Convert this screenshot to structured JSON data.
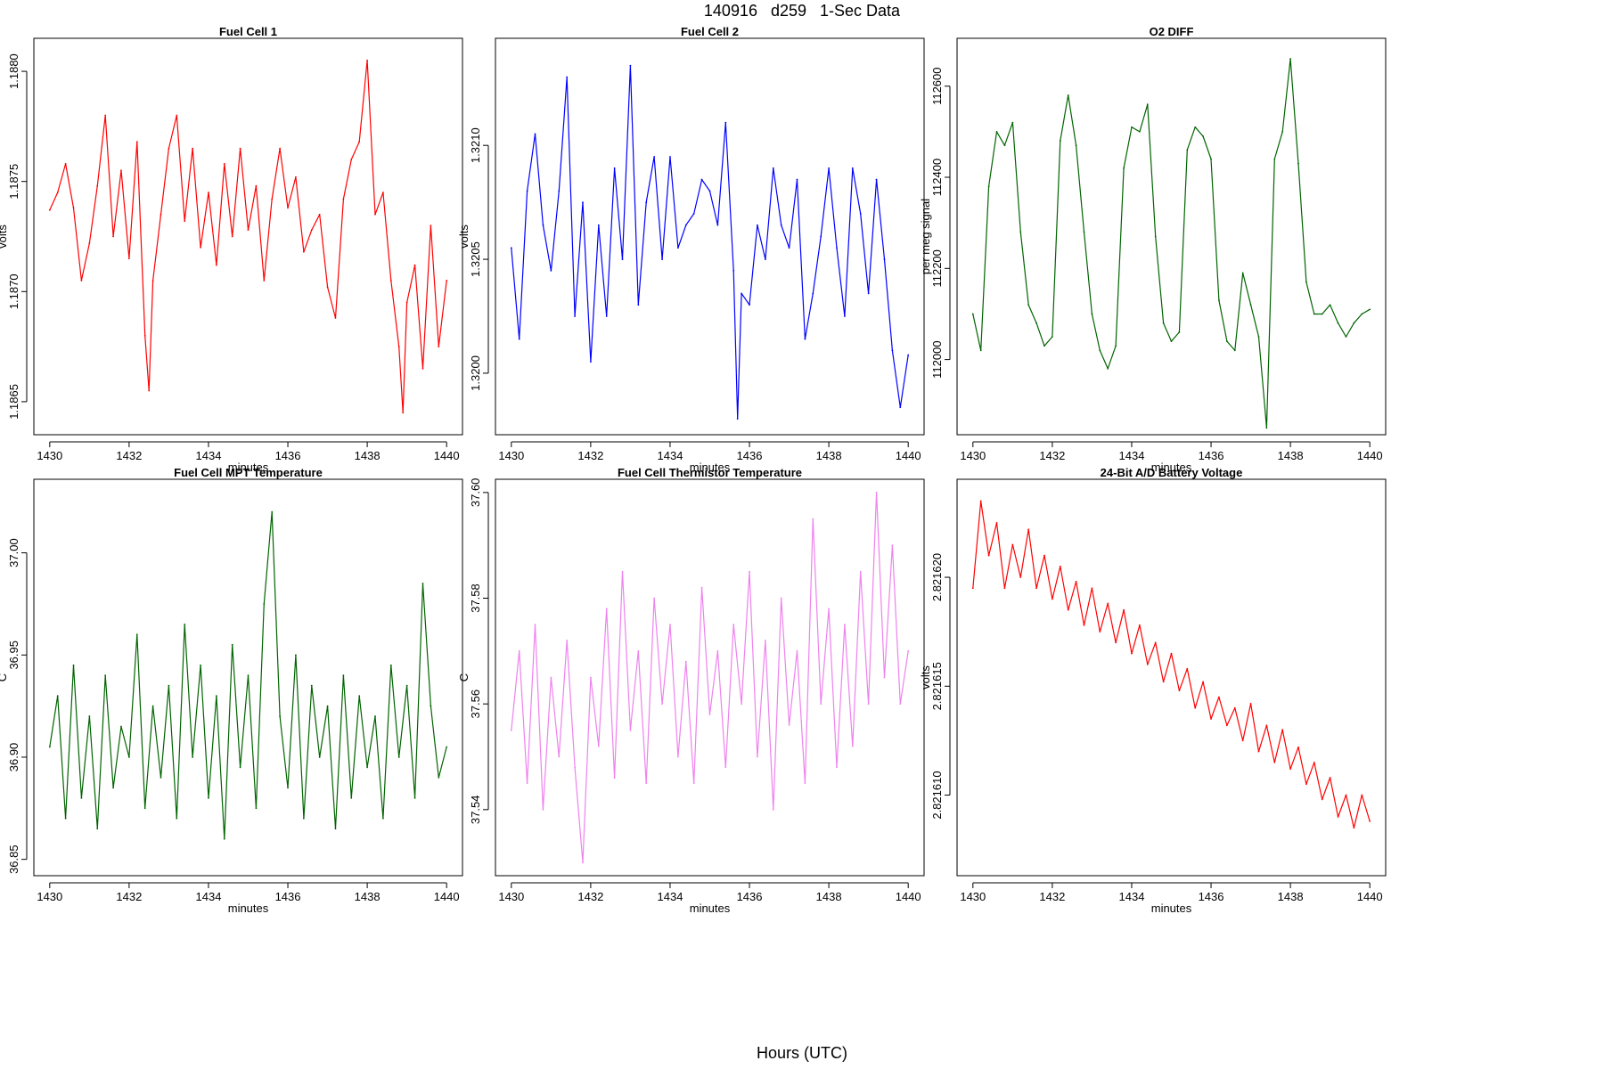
{
  "figure": {
    "title": "140916   d259   1-Sec Data",
    "outer_xlabel": "Hours (UTC)"
  },
  "chart_data": [
    {
      "type": "line",
      "title": "Fuel Cell 1",
      "xlabel": "minutes",
      "ylabel": "volts",
      "color": "#ff0000",
      "xlim": [
        1429.6,
        1440.4
      ],
      "ylim": [
        1.18635,
        1.18815
      ],
      "xticks": [
        1430,
        1432,
        1434,
        1436,
        1438,
        1440
      ],
      "xtick_labels": [
        "1430",
        "1432",
        "1434",
        "1436",
        "1438",
        "1440"
      ],
      "yticks": [
        1.1865,
        1.187,
        1.1875,
        1.188
      ],
      "ytick_labels": [
        "1.1865",
        "1.1870",
        "1.1875",
        "1.1880"
      ],
      "series": [
        {
          "x": [
            1430.0,
            1430.2,
            1430.4,
            1430.6,
            1430.8,
            1431.0,
            1431.2,
            1431.4,
            1431.6,
            1431.8,
            1432.0,
            1432.2,
            1432.4,
            1432.5,
            1432.6,
            1432.8,
            1433.0,
            1433.2,
            1433.4,
            1433.6,
            1433.8,
            1434.0,
            1434.2,
            1434.4,
            1434.6,
            1434.8,
            1435.0,
            1435.2,
            1435.4,
            1435.6,
            1435.8,
            1436.0,
            1436.2,
            1436.4,
            1436.6,
            1436.8,
            1437.0,
            1437.2,
            1437.4,
            1437.6,
            1437.8,
            1438.0,
            1438.2,
            1438.4,
            1438.6,
            1438.8,
            1438.9,
            1439.0,
            1439.2,
            1439.4,
            1439.6,
            1439.8,
            1440.0
          ],
          "y": [
            1.18737,
            1.18745,
            1.18758,
            1.18738,
            1.18705,
            1.18722,
            1.18748,
            1.1878,
            1.18725,
            1.18755,
            1.18715,
            1.18768,
            1.1868,
            1.18655,
            1.18705,
            1.18735,
            1.18765,
            1.1878,
            1.18732,
            1.18765,
            1.1872,
            1.18745,
            1.18712,
            1.18758,
            1.18725,
            1.18765,
            1.18728,
            1.18748,
            1.18705,
            1.18742,
            1.18765,
            1.18738,
            1.18752,
            1.18718,
            1.18728,
            1.18735,
            1.18702,
            1.18688,
            1.18742,
            1.1876,
            1.18768,
            1.18805,
            1.18735,
            1.18745,
            1.18705,
            1.18675,
            1.18645,
            1.18695,
            1.18712,
            1.18665,
            1.1873,
            1.18675,
            1.18705
          ]
        }
      ]
    },
    {
      "type": "line",
      "title": "Fuel Cell 2",
      "xlabel": "minutes",
      "ylabel": "volts",
      "color": "#0000ff",
      "xlim": [
        1429.6,
        1440.4
      ],
      "ylim": [
        1.31973,
        1.32147
      ],
      "xticks": [
        1430,
        1432,
        1434,
        1436,
        1438,
        1440
      ],
      "xtick_labels": [
        "1430",
        "1432",
        "1434",
        "1436",
        "1438",
        "1440"
      ],
      "yticks": [
        1.32,
        1.3205,
        1.321
      ],
      "ytick_labels": [
        "1.3200",
        "1.3205",
        "1.3210"
      ],
      "series": [
        {
          "x": [
            1430.0,
            1430.2,
            1430.4,
            1430.6,
            1430.8,
            1431.0,
            1431.2,
            1431.4,
            1431.6,
            1431.8,
            1432.0,
            1432.2,
            1432.4,
            1432.6,
            1432.8,
            1433.0,
            1433.2,
            1433.4,
            1433.6,
            1433.8,
            1434.0,
            1434.2,
            1434.4,
            1434.6,
            1434.8,
            1435.0,
            1435.2,
            1435.4,
            1435.6,
            1435.7,
            1435.8,
            1436.0,
            1436.2,
            1436.4,
            1436.6,
            1436.8,
            1437.0,
            1437.2,
            1437.4,
            1437.6,
            1437.8,
            1438.0,
            1438.2,
            1438.4,
            1438.6,
            1438.8,
            1439.0,
            1439.2,
            1439.4,
            1439.6,
            1439.8,
            1440.0
          ],
          "y": [
            1.32055,
            1.32015,
            1.3208,
            1.32105,
            1.32065,
            1.32045,
            1.3208,
            1.3213,
            1.32025,
            1.32075,
            1.32005,
            1.32065,
            1.32025,
            1.3209,
            1.3205,
            1.32135,
            1.3203,
            1.32075,
            1.32095,
            1.3205,
            1.32095,
            1.32055,
            1.32065,
            1.3207,
            1.32085,
            1.3208,
            1.32065,
            1.3211,
            1.32045,
            1.3198,
            1.32035,
            1.3203,
            1.32065,
            1.3205,
            1.3209,
            1.32065,
            1.32055,
            1.32085,
            1.32015,
            1.32035,
            1.3206,
            1.3209,
            1.32055,
            1.32025,
            1.3209,
            1.3207,
            1.32035,
            1.32085,
            1.3205,
            1.3201,
            1.31985,
            1.32008
          ]
        }
      ]
    },
    {
      "type": "line",
      "title": "O2 DIFF",
      "xlabel": "minutes",
      "ylabel": "per meg signal",
      "color": "#006400",
      "xlim": [
        1429.6,
        1440.4
      ],
      "ylim": [
        111835,
        112705
      ],
      "xticks": [
        1430,
        1432,
        1434,
        1436,
        1438,
        1440
      ],
      "xtick_labels": [
        "1430",
        "1432",
        "1434",
        "1436",
        "1438",
        "1440"
      ],
      "yticks": [
        112000,
        112200,
        112400,
        112600
      ],
      "ytick_labels": [
        "112000",
        "112200",
        "112400",
        "112600"
      ],
      "series": [
        {
          "x": [
            1430.0,
            1430.2,
            1430.4,
            1430.6,
            1430.8,
            1431.0,
            1431.2,
            1431.4,
            1431.6,
            1431.8,
            1432.0,
            1432.2,
            1432.4,
            1432.6,
            1432.8,
            1433.0,
            1433.2,
            1433.4,
            1433.6,
            1433.8,
            1434.0,
            1434.2,
            1434.4,
            1434.6,
            1434.8,
            1435.0,
            1435.2,
            1435.4,
            1435.6,
            1435.8,
            1436.0,
            1436.2,
            1436.4,
            1436.6,
            1436.8,
            1437.0,
            1437.2,
            1437.4,
            1437.6,
            1437.8,
            1438.0,
            1438.2,
            1438.4,
            1438.6,
            1438.8,
            1439.0,
            1439.2,
            1439.4,
            1439.6,
            1439.8,
            1440.0
          ],
          "y": [
            112100,
            112020,
            112380,
            112500,
            112470,
            112520,
            112280,
            112120,
            112080,
            112030,
            112050,
            112480,
            112580,
            112470,
            112280,
            112100,
            112020,
            111980,
            112030,
            112420,
            112510,
            112500,
            112560,
            112270,
            112080,
            112040,
            112060,
            112460,
            112510,
            112490,
            112440,
            112130,
            112040,
            112020,
            112190,
            112120,
            112050,
            111850,
            112440,
            112500,
            112660,
            112430,
            112170,
            112100,
            112100,
            112120,
            112080,
            112050,
            112080,
            112100,
            112110
          ]
        }
      ]
    },
    {
      "type": "line",
      "title": "Fuel Cell MPT Temperature",
      "xlabel": "minutes",
      "ylabel": "C",
      "color": "#006400",
      "xlim": [
        1429.6,
        1440.4
      ],
      "ylim": [
        36.842,
        37.036
      ],
      "xticks": [
        1430,
        1432,
        1434,
        1436,
        1438,
        1440
      ],
      "xtick_labels": [
        "1430",
        "1432",
        "1434",
        "1436",
        "1438",
        "1440"
      ],
      "yticks": [
        36.85,
        36.9,
        36.95,
        37.0
      ],
      "ytick_labels": [
        "36.85",
        "36.90",
        "36.95",
        "37.00"
      ],
      "series": [
        {
          "x": [
            1430.0,
            1430.2,
            1430.4,
            1430.6,
            1430.8,
            1431.0,
            1431.2,
            1431.4,
            1431.6,
            1431.8,
            1432.0,
            1432.2,
            1432.4,
            1432.6,
            1432.8,
            1433.0,
            1433.2,
            1433.4,
            1433.6,
            1433.8,
            1434.0,
            1434.2,
            1434.4,
            1434.6,
            1434.8,
            1435.0,
            1435.2,
            1435.4,
            1435.6,
            1435.8,
            1436.0,
            1436.2,
            1436.4,
            1436.6,
            1436.8,
            1437.0,
            1437.2,
            1437.4,
            1437.6,
            1437.8,
            1438.0,
            1438.2,
            1438.4,
            1438.6,
            1438.8,
            1439.0,
            1439.2,
            1439.4,
            1439.6,
            1439.8,
            1440.0
          ],
          "y": [
            36.905,
            36.93,
            36.87,
            36.945,
            36.88,
            36.92,
            36.865,
            36.94,
            36.885,
            36.915,
            36.9,
            36.96,
            36.875,
            36.925,
            36.89,
            36.935,
            36.87,
            36.965,
            36.9,
            36.945,
            36.88,
            36.93,
            36.86,
            36.955,
            36.895,
            36.94,
            36.875,
            36.975,
            37.02,
            36.92,
            36.885,
            36.95,
            36.87,
            36.935,
            36.9,
            36.925,
            36.865,
            36.94,
            36.88,
            36.93,
            36.895,
            36.92,
            36.87,
            36.945,
            36.9,
            36.935,
            36.88,
            36.985,
            36.925,
            36.89,
            36.905
          ]
        }
      ]
    },
    {
      "type": "line",
      "title": "Fuel Cell Thermistor Temperature",
      "xlabel": "minutes",
      "ylabel": "C",
      "color": "#ee82ee",
      "xlim": [
        1429.6,
        1440.4
      ],
      "ylim": [
        37.5275,
        37.6025
      ],
      "xticks": [
        1430,
        1432,
        1434,
        1436,
        1438,
        1440
      ],
      "xtick_labels": [
        "1430",
        "1432",
        "1434",
        "1436",
        "1438",
        "1440"
      ],
      "yticks": [
        37.54,
        37.56,
        37.58,
        37.6
      ],
      "ytick_labels": [
        "37.54",
        "37.56",
        "37.58",
        "37.60"
      ],
      "series": [
        {
          "x": [
            1430.0,
            1430.2,
            1430.4,
            1430.6,
            1430.8,
            1431.0,
            1431.2,
            1431.4,
            1431.6,
            1431.8,
            1432.0,
            1432.2,
            1432.4,
            1432.6,
            1432.8,
            1433.0,
            1433.2,
            1433.4,
            1433.6,
            1433.8,
            1434.0,
            1434.2,
            1434.4,
            1434.6,
            1434.8,
            1435.0,
            1435.2,
            1435.4,
            1435.6,
            1435.8,
            1436.0,
            1436.2,
            1436.4,
            1436.6,
            1436.8,
            1437.0,
            1437.2,
            1437.4,
            1437.6,
            1437.8,
            1438.0,
            1438.2,
            1438.4,
            1438.6,
            1438.8,
            1439.0,
            1439.2,
            1439.4,
            1439.6,
            1439.8,
            1440.0
          ],
          "y": [
            37.555,
            37.57,
            37.545,
            37.575,
            37.54,
            37.565,
            37.55,
            37.572,
            37.548,
            37.53,
            37.565,
            37.552,
            37.578,
            37.546,
            37.585,
            37.555,
            37.57,
            37.545,
            37.58,
            37.56,
            37.575,
            37.55,
            37.568,
            37.545,
            37.582,
            37.558,
            37.57,
            37.548,
            37.575,
            37.56,
            37.585,
            37.55,
            37.572,
            37.54,
            37.58,
            37.556,
            37.57,
            37.545,
            37.595,
            37.56,
            37.578,
            37.548,
            37.575,
            37.552,
            37.585,
            37.56,
            37.6,
            37.565,
            37.59,
            37.56,
            37.57
          ]
        }
      ]
    },
    {
      "type": "line",
      "title": "24-Bit A/D Battery Voltage",
      "xlabel": "minutes",
      "ylabel": "volts",
      "color": "#ff0000",
      "xlim": [
        1429.6,
        1440.4
      ],
      "ylim": [
        2.8216063,
        2.8216245
      ],
      "xticks": [
        1430,
        1432,
        1434,
        1436,
        1438,
        1440
      ],
      "xtick_labels": [
        "1430",
        "1432",
        "1434",
        "1436",
        "1438",
        "1440"
      ],
      "yticks": [
        2.82161,
        2.821615,
        2.82162
      ],
      "ytick_labels": [
        "2.821610",
        "2.821615",
        "2.821620"
      ],
      "series": [
        {
          "x": [
            1430.0,
            1430.2,
            1430.4,
            1430.6,
            1430.8,
            1431.0,
            1431.2,
            1431.4,
            1431.6,
            1431.8,
            1432.0,
            1432.2,
            1432.4,
            1432.6,
            1432.8,
            1433.0,
            1433.2,
            1433.4,
            1433.6,
            1433.8,
            1434.0,
            1434.2,
            1434.4,
            1434.6,
            1434.8,
            1435.0,
            1435.2,
            1435.4,
            1435.6,
            1435.8,
            1436.0,
            1436.2,
            1436.4,
            1436.6,
            1436.8,
            1437.0,
            1437.2,
            1437.4,
            1437.6,
            1437.8,
            1438.0,
            1438.2,
            1438.4,
            1438.6,
            1438.8,
            1439.0,
            1439.2,
            1439.4,
            1439.6,
            1439.8,
            1440.0
          ],
          "y": [
            2.8216195,
            2.8216235,
            2.821621,
            2.8216225,
            2.8216195,
            2.8216215,
            2.82162,
            2.8216222,
            2.8216195,
            2.821621,
            2.821619,
            2.8216205,
            2.8216185,
            2.8216198,
            2.8216178,
            2.8216195,
            2.8216175,
            2.8216188,
            2.821617,
            2.8216185,
            2.8216165,
            2.8216178,
            2.821616,
            2.821617,
            2.8216152,
            2.8216165,
            2.8216148,
            2.8216158,
            2.821614,
            2.8216152,
            2.8216135,
            2.8216145,
            2.8216132,
            2.821614,
            2.8216125,
            2.8216142,
            2.821612,
            2.8216132,
            2.8216115,
            2.821613,
            2.8216112,
            2.8216122,
            2.8216105,
            2.8216115,
            2.8216098,
            2.8216108,
            2.821609,
            2.82161,
            2.8216085,
            2.82161,
            2.8216088
          ]
        }
      ]
    }
  ]
}
